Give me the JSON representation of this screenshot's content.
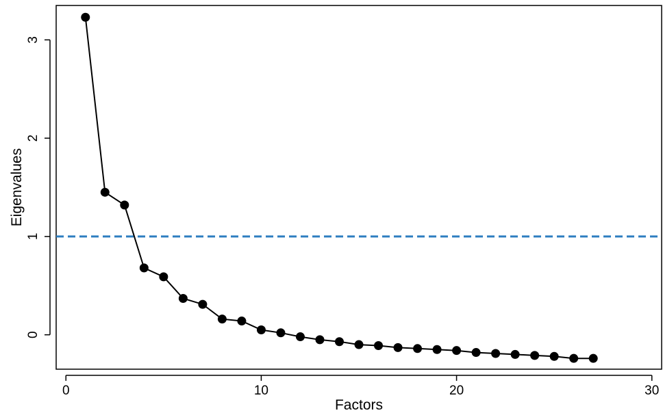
{
  "chart_data": {
    "type": "line",
    "title": "",
    "xlabel": "Factors",
    "ylabel": "Eigenvalues",
    "xlim": [
      -0.5,
      30.5
    ],
    "ylim": [
      -0.35,
      3.35
    ],
    "xticks": [
      0,
      10,
      20,
      30
    ],
    "yticks": [
      0,
      1,
      2,
      3
    ],
    "grid": false,
    "legend": "none",
    "series": [
      {
        "x": [
          1,
          2,
          3,
          4,
          5,
          6,
          7,
          8,
          9,
          10,
          11,
          12,
          13,
          14,
          15,
          16,
          17,
          18,
          19,
          20,
          21,
          22,
          23,
          24,
          25,
          26,
          27
        ],
        "values": [
          3.23,
          1.45,
          1.32,
          0.68,
          0.59,
          0.37,
          0.31,
          0.16,
          0.14,
          0.05,
          0.02,
          -0.02,
          -0.05,
          -0.07,
          -0.1,
          -0.11,
          -0.13,
          -0.14,
          -0.15,
          -0.16,
          -0.18,
          -0.19,
          -0.2,
          -0.21,
          -0.22,
          -0.24,
          -0.24
        ],
        "color": "#000000",
        "marker": "circle"
      }
    ],
    "reference_lines": [
      {
        "y": 1,
        "style": "dashed",
        "color": "#2E7EC0"
      }
    ]
  }
}
